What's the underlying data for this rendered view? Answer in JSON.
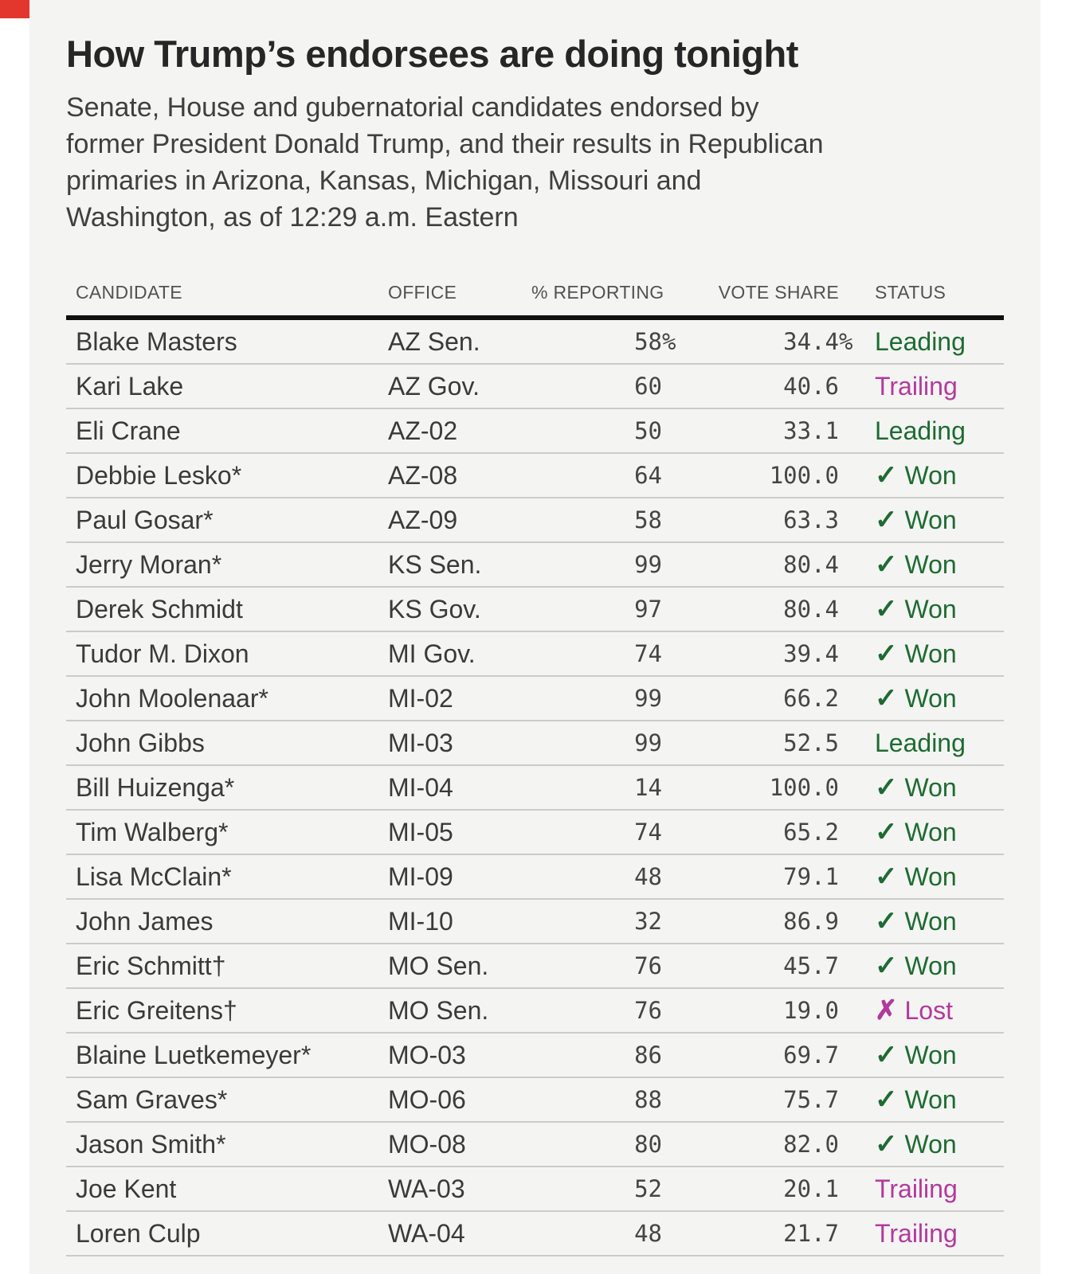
{
  "chart_data": {
    "type": "table",
    "title": "How Trump’s endorsees are doing tonight",
    "subtitle_lines": [
      "Senate, House and gubernatorial candidates endorsed by",
      "former President Donald Trump, and their results in Republican",
      "primaries in Arizona, Kansas, Michigan, Missouri and",
      "Washington, as of 12:29 a.m. Eastern"
    ],
    "columns": [
      "CANDIDATE",
      "OFFICE",
      "% REPORTING",
      "VOTE SHARE",
      "STATUS"
    ],
    "rows": [
      {
        "candidate": "Blake Masters",
        "office": "AZ Sen.",
        "reporting": "58",
        "reporting_suffix": "%",
        "share": "34.4",
        "share_suffix": "%",
        "status_icon": "",
        "status_label": "Leading",
        "status_state": "leading"
      },
      {
        "candidate": "Kari Lake",
        "office": "AZ Gov.",
        "reporting": "60",
        "reporting_suffix": "",
        "share": "40.6",
        "share_suffix": "",
        "status_icon": "",
        "status_label": "Trailing",
        "status_state": "trailing"
      },
      {
        "candidate": "Eli Crane",
        "office": "AZ-02",
        "reporting": "50",
        "reporting_suffix": "",
        "share": "33.1",
        "share_suffix": "",
        "status_icon": "",
        "status_label": "Leading",
        "status_state": "leading"
      },
      {
        "candidate": "Debbie Lesko*",
        "office": "AZ-08",
        "reporting": "64",
        "reporting_suffix": "",
        "share": "100.0",
        "share_suffix": "",
        "status_icon": "✓",
        "status_label": "Won",
        "status_state": "won"
      },
      {
        "candidate": "Paul Gosar*",
        "office": "AZ-09",
        "reporting": "58",
        "reporting_suffix": "",
        "share": "63.3",
        "share_suffix": "",
        "status_icon": "✓",
        "status_label": "Won",
        "status_state": "won"
      },
      {
        "candidate": "Jerry Moran*",
        "office": "KS Sen.",
        "reporting": "99",
        "reporting_suffix": "",
        "share": "80.4",
        "share_suffix": "",
        "status_icon": "✓",
        "status_label": "Won",
        "status_state": "won"
      },
      {
        "candidate": "Derek Schmidt",
        "office": "KS Gov.",
        "reporting": "97",
        "reporting_suffix": "",
        "share": "80.4",
        "share_suffix": "",
        "status_icon": "✓",
        "status_label": "Won",
        "status_state": "won"
      },
      {
        "candidate": "Tudor M. Dixon",
        "office": "MI Gov.",
        "reporting": "74",
        "reporting_suffix": "",
        "share": "39.4",
        "share_suffix": "",
        "status_icon": "✓",
        "status_label": "Won",
        "status_state": "won"
      },
      {
        "candidate": "John Moolenaar*",
        "office": "MI-02",
        "reporting": "99",
        "reporting_suffix": "",
        "share": "66.2",
        "share_suffix": "",
        "status_icon": "✓",
        "status_label": "Won",
        "status_state": "won"
      },
      {
        "candidate": "John Gibbs",
        "office": "MI-03",
        "reporting": "99",
        "reporting_suffix": "",
        "share": "52.5",
        "share_suffix": "",
        "status_icon": "",
        "status_label": "Leading",
        "status_state": "leading"
      },
      {
        "candidate": "Bill Huizenga*",
        "office": "MI-04",
        "reporting": "14",
        "reporting_suffix": "",
        "share": "100.0",
        "share_suffix": "",
        "status_icon": "✓",
        "status_label": "Won",
        "status_state": "won"
      },
      {
        "candidate": "Tim Walberg*",
        "office": "MI-05",
        "reporting": "74",
        "reporting_suffix": "",
        "share": "65.2",
        "share_suffix": "",
        "status_icon": "✓",
        "status_label": "Won",
        "status_state": "won"
      },
      {
        "candidate": "Lisa McClain*",
        "office": "MI-09",
        "reporting": "48",
        "reporting_suffix": "",
        "share": "79.1",
        "share_suffix": "",
        "status_icon": "✓",
        "status_label": "Won",
        "status_state": "won"
      },
      {
        "candidate": "John James",
        "office": "MI-10",
        "reporting": "32",
        "reporting_suffix": "",
        "share": "86.9",
        "share_suffix": "",
        "status_icon": "✓",
        "status_label": "Won",
        "status_state": "won"
      },
      {
        "candidate": "Eric Schmitt†",
        "office": "MO Sen.",
        "reporting": "76",
        "reporting_suffix": "",
        "share": "45.7",
        "share_suffix": "",
        "status_icon": "✓",
        "status_label": "Won",
        "status_state": "won"
      },
      {
        "candidate": "Eric Greitens†",
        "office": "MO Sen.",
        "reporting": "76",
        "reporting_suffix": "",
        "share": "19.0",
        "share_suffix": "",
        "status_icon": "✗",
        "status_label": "Lost",
        "status_state": "lost"
      },
      {
        "candidate": "Blaine Luetkemeyer*",
        "office": "MO-03",
        "reporting": "86",
        "reporting_suffix": "",
        "share": "69.7",
        "share_suffix": "",
        "status_icon": "✓",
        "status_label": "Won",
        "status_state": "won"
      },
      {
        "candidate": "Sam Graves*",
        "office": "MO-06",
        "reporting": "88",
        "reporting_suffix": "",
        "share": "75.7",
        "share_suffix": "",
        "status_icon": "✓",
        "status_label": "Won",
        "status_state": "won"
      },
      {
        "candidate": "Jason Smith*",
        "office": "MO-08",
        "reporting": "80",
        "reporting_suffix": "",
        "share": "82.0",
        "share_suffix": "",
        "status_icon": "✓",
        "status_label": "Won",
        "status_state": "won"
      },
      {
        "candidate": "Joe Kent",
        "office": "WA-03",
        "reporting": "52",
        "reporting_suffix": "",
        "share": "20.1",
        "share_suffix": "",
        "status_icon": "",
        "status_label": "Trailing",
        "status_state": "trailing"
      },
      {
        "candidate": "Loren Culp",
        "office": "WA-04",
        "reporting": "48",
        "reporting_suffix": "",
        "share": "21.7",
        "share_suffix": "",
        "status_icon": "",
        "status_label": "Trailing",
        "status_state": "trailing"
      }
    ]
  },
  "colors": {
    "positive_green": "#1e6b31",
    "negative_magenta": "#b23a9c",
    "corner_flag_red": "#e3372e"
  }
}
